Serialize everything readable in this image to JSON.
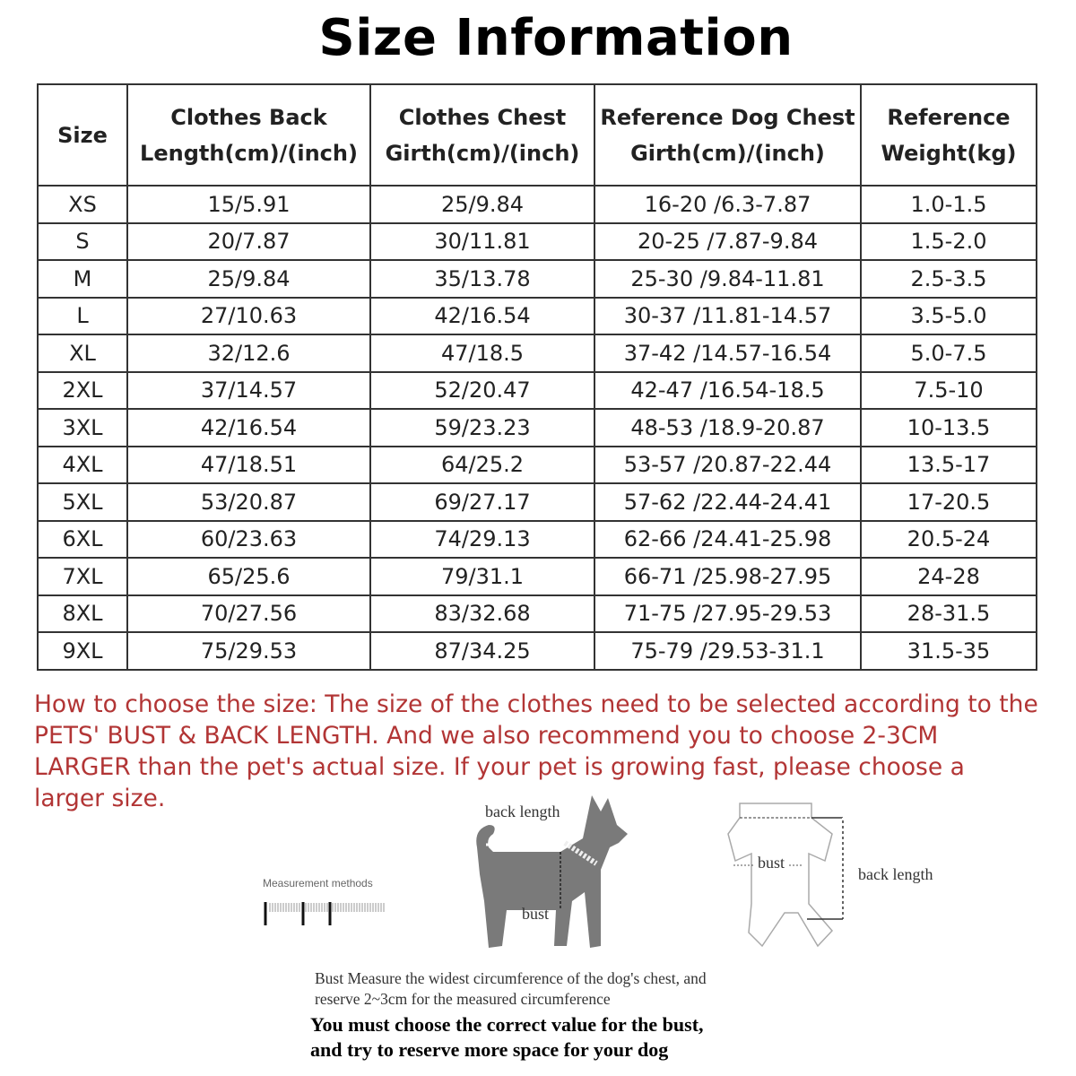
{
  "title": "Size Information",
  "table": {
    "headers": [
      "Size",
      "Clothes Back\nLength(cm)/(inch)",
      "Clothes Chest\nGirth(cm)/(inch)",
      "Reference Dog Chest\nGirth(cm)/(inch)",
      "Reference\nWeight(kg)"
    ],
    "rows": [
      [
        "XS",
        "15/5.91",
        "25/9.84",
        "16-20 /6.3-7.87",
        "1.0-1.5"
      ],
      [
        "S",
        "20/7.87",
        "30/11.81",
        "20-25 /7.87-9.84",
        "1.5-2.0"
      ],
      [
        "M",
        "25/9.84",
        "35/13.78",
        "25-30 /9.84-11.81",
        "2.5-3.5"
      ],
      [
        "L",
        "27/10.63",
        "42/16.54",
        "30-37 /11.81-14.57",
        "3.5-5.0"
      ],
      [
        "XL",
        "32/12.6",
        "47/18.5",
        "37-42 /14.57-16.54",
        "5.0-7.5"
      ],
      [
        "2XL",
        "37/14.57",
        "52/20.47",
        "42-47 /16.54-18.5",
        "7.5-10"
      ],
      [
        "3XL",
        "42/16.54",
        "59/23.23",
        "48-53 /18.9-20.87",
        "10-13.5"
      ],
      [
        "4XL",
        "47/18.51",
        "64/25.2",
        "53-57 /20.87-22.44",
        "13.5-17"
      ],
      [
        "5XL",
        "53/20.87",
        "69/27.17",
        "57-62 /22.44-24.41",
        "17-20.5"
      ],
      [
        "6XL",
        "60/23.63",
        "74/29.13",
        "62-66 /24.41-25.98",
        "20.5-24"
      ],
      [
        "7XL",
        "65/25.6",
        "79/31.1",
        "66-71 /25.98-27.95",
        "24-28"
      ],
      [
        "8XL",
        "70/27.56",
        "83/32.68",
        "71-75 /27.95-29.53",
        "28-31.5"
      ],
      [
        "9XL",
        "75/29.53",
        "87/34.25",
        "75-79 /29.53-31.1",
        "31.5-35"
      ]
    ]
  },
  "howto": "How to choose the size: The size of the clothes need to be selected according to the PETS' BUST & BACK LENGTH. And we also recommend you to choose 2-3CM LARGER than the pet's actual size. If your pet is growing fast, please choose a larger size.",
  "diagram": {
    "measurement_methods": "Measurement methods",
    "dog_back_length": "back length",
    "dog_bust": "bust",
    "clothes_bust": "bust",
    "clothes_back_length": "back length",
    "note1": "Bust Measure the widest circumference of the dog's chest, and",
    "note2": "reserve 2~3cm for the measured circumference",
    "bold1": "You must choose the correct value for the bust,",
    "bold2": "and try to reserve more space for your dog"
  },
  "colors": {
    "howto_text": "#b23535",
    "silhouette": "#7a7a7a"
  }
}
